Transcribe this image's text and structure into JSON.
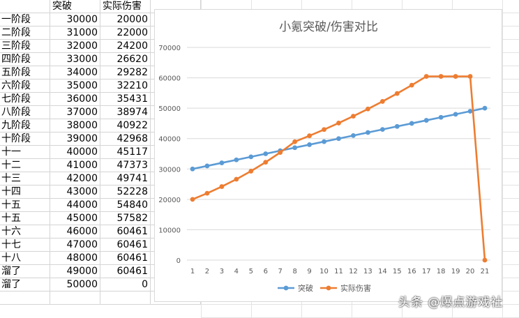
{
  "sheet": {
    "headers": [
      "",
      "突破",
      "实际伤害"
    ],
    "rows": [
      [
        "一阶段",
        "30000",
        "20000"
      ],
      [
        "二阶段",
        "31000",
        "22000"
      ],
      [
        "三阶段",
        "32000",
        "24200"
      ],
      [
        "四阶段",
        "33000",
        "26620"
      ],
      [
        "五阶段",
        "34000",
        "29282"
      ],
      [
        "六阶段",
        "35000",
        "32210"
      ],
      [
        "七阶段",
        "36000",
        "35431"
      ],
      [
        "八阶段",
        "37000",
        "38974"
      ],
      [
        "九阶段",
        "38000",
        "40922"
      ],
      [
        "十阶段",
        "39000",
        "42968"
      ],
      [
        "十一",
        "40000",
        "45117"
      ],
      [
        "十二",
        "41000",
        "47373"
      ],
      [
        "十三",
        "42000",
        "49741"
      ],
      [
        "十四",
        "43000",
        "52228"
      ],
      [
        "十五",
        "44000",
        "54840"
      ],
      [
        "十五",
        "45000",
        "57582"
      ],
      [
        "十六",
        "46000",
        "60461"
      ],
      [
        "十七",
        "47000",
        "60461"
      ],
      [
        "十八",
        "48000",
        "60461"
      ],
      [
        "溜了",
        "49000",
        "60461"
      ],
      [
        "溜了",
        "50000",
        "0"
      ]
    ]
  },
  "chart_data": {
    "type": "line",
    "title": "小氪突破/伤害对比",
    "categories": [
      "1",
      "2",
      "3",
      "4",
      "5",
      "6",
      "7",
      "8",
      "9",
      "10",
      "11",
      "12",
      "13",
      "14",
      "15",
      "16",
      "17",
      "18",
      "19",
      "20",
      "21"
    ],
    "series": [
      {
        "name": "突破",
        "color": "#5b9bd5",
        "values": [
          30000,
          31000,
          32000,
          33000,
          34000,
          35000,
          36000,
          37000,
          38000,
          39000,
          40000,
          41000,
          42000,
          43000,
          44000,
          45000,
          46000,
          47000,
          48000,
          49000,
          50000
        ]
      },
      {
        "name": "实际伤害",
        "color": "#ed7d31",
        "values": [
          20000,
          22000,
          24200,
          26620,
          29282,
          32210,
          35431,
          38974,
          40922,
          42968,
          45117,
          47373,
          49741,
          52228,
          54840,
          57582,
          60461,
          60461,
          60461,
          60461,
          0
        ]
      }
    ],
    "ylim": [
      0,
      70000
    ],
    "yticks": [
      "0",
      "10000",
      "20000",
      "30000",
      "40000",
      "50000",
      "60000",
      "70000"
    ],
    "grid": true,
    "legend": "bottom"
  },
  "watermark": "头条 @爆点游戏社"
}
